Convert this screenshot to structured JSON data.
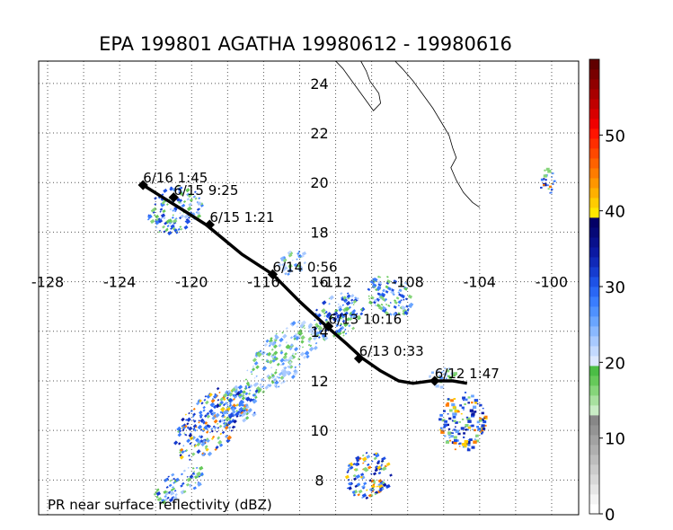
{
  "title": "EPA 199801 AGATHA 19980612 - 19980616",
  "caption": "PR near surface reflectivity (dBZ)",
  "map": {
    "lon_range": [
      -128.5,
      -98.5
    ],
    "lat_range": [
      6.6,
      24.9
    ],
    "lon_ticks": [
      -128,
      -124,
      -120,
      -116,
      -112,
      -108,
      -104,
      -100
    ],
    "lon_tick_labels": [
      "-128",
      "-124",
      "-120",
      "-116",
      "-112",
      "-108",
      "-104",
      "-100"
    ],
    "lat_ticks": [
      8,
      10,
      12,
      14,
      16,
      18,
      20,
      22,
      24
    ],
    "lat_tick_labels": [
      "8",
      "10",
      "12",
      "14",
      "16",
      "18",
      "20",
      "22",
      "24"
    ],
    "gridlines": true,
    "grid_lon_step": 2,
    "grid_lat_step": 2
  },
  "track": {
    "color": "#000000",
    "points": [
      {
        "lon": -104.7,
        "lat": 11.9
      },
      {
        "lon": -105.5,
        "lat": 12.0
      },
      {
        "lon": -106.7,
        "lat": 12.0
      },
      {
        "lon": -107.7,
        "lat": 11.9
      },
      {
        "lon": -108.5,
        "lat": 12.0
      },
      {
        "lon": -109.5,
        "lat": 12.4
      },
      {
        "lon": -110.5,
        "lat": 12.9
      },
      {
        "lon": -111.4,
        "lat": 13.5
      },
      {
        "lon": -112.5,
        "lat": 14.2
      },
      {
        "lon": -114.0,
        "lat": 15.2
      },
      {
        "lon": -115.5,
        "lat": 16.3
      },
      {
        "lon": -117.2,
        "lat": 17.1
      },
      {
        "lon": -119.2,
        "lat": 18.3
      },
      {
        "lon": -120.5,
        "lat": 18.9
      },
      {
        "lon": -121.6,
        "lat": 19.4
      },
      {
        "lon": -122.7,
        "lat": 19.9
      }
    ],
    "fixes": [
      {
        "label": "6/12 1:47",
        "lon": -106.5,
        "lat": 12.0
      },
      {
        "label": "6/13 0:33",
        "lon": -110.7,
        "lat": 12.9
      },
      {
        "label": "6/13 10:16",
        "lon": -112.4,
        "lat": 14.2
      },
      {
        "label": "6/14 0:56",
        "lon": -115.5,
        "lat": 16.3
      },
      {
        "label": "6/15 1:21",
        "lon": -119.0,
        "lat": 18.3
      },
      {
        "label": "6/15 9:25",
        "lon": -121.0,
        "lat": 19.4
      },
      {
        "label": "6/16 1:45",
        "lon": -122.7,
        "lat": 19.9
      }
    ]
  },
  "coastline": {
    "color": "#000000",
    "points": [
      {
        "lon": -104.0,
        "lat": 19.0
      },
      {
        "lon": -104.4,
        "lat": 19.2
      },
      {
        "lon": -104.9,
        "lat": 19.6
      },
      {
        "lon": -105.3,
        "lat": 20.1
      },
      {
        "lon": -105.6,
        "lat": 20.6
      },
      {
        "lon": -105.3,
        "lat": 21.0
      },
      {
        "lon": -105.5,
        "lat": 21.4
      },
      {
        "lon": -105.7,
        "lat": 21.9
      },
      {
        "lon": -106.1,
        "lat": 22.4
      },
      {
        "lon": -106.6,
        "lat": 23.0
      },
      {
        "lon": -107.1,
        "lat": 23.5
      },
      {
        "lon": -107.7,
        "lat": 24.1
      },
      {
        "lon": -108.3,
        "lat": 24.6
      },
      {
        "lon": -108.7,
        "lat": 24.9
      }
    ],
    "baja": [
      {
        "lon": -112.0,
        "lat": 24.9
      },
      {
        "lon": -111.6,
        "lat": 24.6
      },
      {
        "lon": -111.3,
        "lat": 24.3
      },
      {
        "lon": -110.9,
        "lat": 23.9
      },
      {
        "lon": -110.4,
        "lat": 23.4
      },
      {
        "lon": -109.9,
        "lat": 22.9
      },
      {
        "lon": -109.5,
        "lat": 23.2
      },
      {
        "lon": -109.6,
        "lat": 23.6
      },
      {
        "lon": -110.1,
        "lat": 24.1
      },
      {
        "lon": -110.3,
        "lat": 24.5
      },
      {
        "lon": -110.6,
        "lat": 24.9
      }
    ]
  },
  "colorbar": {
    "unit": "dBZ",
    "min": 0,
    "max": 60,
    "tick_labels": [
      "0",
      "10",
      "20",
      "30",
      "40",
      "50"
    ],
    "colors": [
      "#ffffff",
      "#f4f4f4",
      "#e6e6e6",
      "#d8d8d8",
      "#cbcbcb",
      "#bdbdbd",
      "#afafaf",
      "#a2a2a2",
      "#949494",
      "#878787",
      "#c9ecc5",
      "#a8e09f",
      "#86d57a",
      "#66c95a",
      "#4bbd45",
      "#dce8ff",
      "#c3d9ff",
      "#a8c9ff",
      "#8ab8ff",
      "#6aa5ff",
      "#4f91ff",
      "#3a7dff",
      "#2a67f5",
      "#1e52e6",
      "#163ccf",
      "#1029b8",
      "#0b19a2",
      "#08108c",
      "#050877",
      "#030066",
      "#ffe600",
      "#ffcc00",
      "#ffb000",
      "#ff9600",
      "#ff7c00",
      "#ff6200",
      "#ff4800",
      "#ff2e00",
      "#ff1400",
      "#f00000",
      "#d80000",
      "#c00000",
      "#a80000",
      "#900000",
      "#780000",
      "#600000"
    ]
  },
  "reflectivity_regions": [
    {
      "lon": -121.0,
      "lat": 18.9,
      "rlon": 1.6,
      "rlat": 0.9,
      "rot": -35,
      "level": "mid"
    },
    {
      "lon": -114.5,
      "lat": 16.8,
      "rlon": 0.8,
      "rlat": 0.5,
      "rot": -30,
      "level": "low"
    },
    {
      "lon": -112.0,
      "lat": 14.6,
      "rlon": 1.6,
      "rlat": 0.8,
      "rot": -40,
      "level": "mid"
    },
    {
      "lon": -109.0,
      "lat": 15.5,
      "rlon": 1.3,
      "rlat": 0.8,
      "rot": 30,
      "level": "mid"
    },
    {
      "lon": -115.0,
      "lat": 13.0,
      "rlon": 2.6,
      "rlat": 0.9,
      "rot": -45,
      "level": "low"
    },
    {
      "lon": -119.0,
      "lat": 10.3,
      "rlon": 2.6,
      "rlat": 1.0,
      "rot": -45,
      "level": "high"
    },
    {
      "lon": -117.5,
      "lat": 11.0,
      "rlon": 1.4,
      "rlat": 0.7,
      "rot": -40,
      "level": "mid"
    },
    {
      "lon": -110.3,
      "lat": 8.2,
      "rlon": 1.4,
      "rlat": 0.9,
      "rot": -30,
      "level": "high"
    },
    {
      "lon": -105.0,
      "lat": 10.4,
      "rlon": 1.3,
      "rlat": 1.2,
      "rot": 0,
      "level": "high"
    },
    {
      "lon": -106.2,
      "lat": 12.2,
      "rlon": 0.9,
      "rlat": 0.4,
      "rot": 0,
      "level": "low"
    },
    {
      "lon": -100.3,
      "lat": 20.1,
      "rlon": 0.4,
      "rlat": 0.6,
      "rot": 0,
      "level": "high"
    },
    {
      "lon": -120.8,
      "lat": 7.8,
      "rlon": 1.6,
      "rlat": 0.5,
      "rot": -30,
      "level": "mid"
    }
  ]
}
